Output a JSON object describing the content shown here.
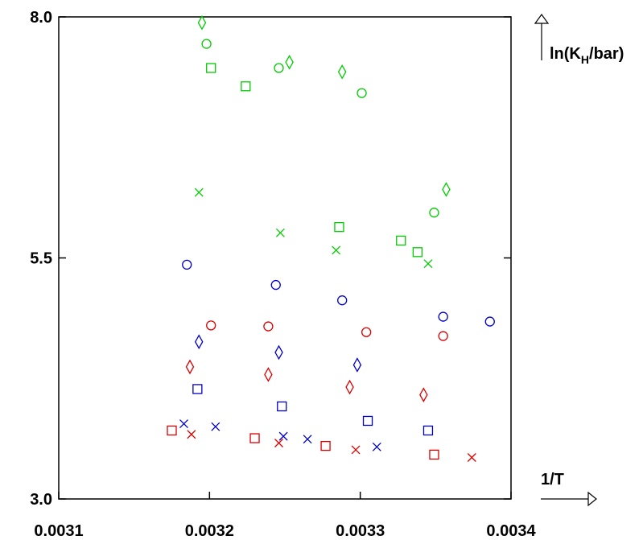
{
  "chart_data": {
    "type": "scatter",
    "title": "",
    "xlabel": "1/T",
    "ylabel": {
      "main": "ln(K",
      "sub": "H",
      "tail": "/bar)"
    },
    "xlim": [
      0.0031,
      0.0034
    ],
    "ylim": [
      3.0,
      8.0
    ],
    "x_ticks": [
      {
        "value": 0.0031,
        "label": "0.0031"
      },
      {
        "value": 0.0032,
        "label": "0.0032"
      },
      {
        "value": 0.0033,
        "label": "0.0033"
      },
      {
        "value": 0.0034,
        "label": "0.0034"
      }
    ],
    "y_ticks": [
      {
        "value": 3.0,
        "label": "3.0"
      },
      {
        "value": 5.5,
        "label": "5.5"
      },
      {
        "value": 8.0,
        "label": "8.0"
      }
    ],
    "grid": false,
    "colors": {
      "green": "#00cc00",
      "blue": "#0000cc",
      "red": "#dd0000"
    },
    "series": [
      {
        "color": "green",
        "marker": "diamond",
        "points": [
          [
            0.003195,
            7.94
          ],
          [
            0.003253,
            7.53
          ],
          [
            0.003288,
            7.43
          ],
          [
            0.003357,
            6.21
          ]
        ]
      },
      {
        "color": "green",
        "marker": "circle",
        "points": [
          [
            0.003198,
            7.72
          ],
          [
            0.003246,
            7.47
          ],
          [
            0.003301,
            7.21
          ],
          [
            0.003349,
            5.97
          ]
        ]
      },
      {
        "color": "green",
        "marker": "square",
        "points": [
          [
            0.003201,
            7.47
          ],
          [
            0.003224,
            7.28
          ],
          [
            0.003286,
            5.82
          ],
          [
            0.003327,
            5.68
          ],
          [
            0.003338,
            5.56
          ]
        ]
      },
      {
        "color": "green",
        "marker": "x",
        "points": [
          [
            0.003193,
            6.18
          ],
          [
            0.003247,
            5.76
          ],
          [
            0.003284,
            5.58
          ],
          [
            0.003345,
            5.44
          ]
        ]
      },
      {
        "color": "blue",
        "marker": "circle",
        "points": [
          [
            0.003185,
            5.43
          ],
          [
            0.003244,
            5.22
          ],
          [
            0.003288,
            5.06
          ],
          [
            0.003355,
            4.89
          ],
          [
            0.003386,
            4.84
          ]
        ]
      },
      {
        "color": "blue",
        "marker": "diamond",
        "points": [
          [
            0.003193,
            4.63
          ],
          [
            0.003246,
            4.52
          ],
          [
            0.003298,
            4.39
          ]
        ]
      },
      {
        "color": "blue",
        "marker": "square",
        "points": [
          [
            0.003192,
            4.14
          ],
          [
            0.003248,
            3.96
          ],
          [
            0.003305,
            3.81
          ],
          [
            0.003345,
            3.71
          ]
        ]
      },
      {
        "color": "blue",
        "marker": "x",
        "points": [
          [
            0.003183,
            3.78
          ],
          [
            0.003204,
            3.75
          ],
          [
            0.003249,
            3.65
          ],
          [
            0.003265,
            3.62
          ],
          [
            0.003311,
            3.54
          ]
        ]
      },
      {
        "color": "red",
        "marker": "circle",
        "points": [
          [
            0.003201,
            4.8
          ],
          [
            0.003239,
            4.79
          ],
          [
            0.003304,
            4.73
          ],
          [
            0.003355,
            4.69
          ]
        ]
      },
      {
        "color": "red",
        "marker": "diamond",
        "points": [
          [
            0.003187,
            4.37
          ],
          [
            0.003239,
            4.29
          ],
          [
            0.003293,
            4.16
          ],
          [
            0.003342,
            4.08
          ]
        ]
      },
      {
        "color": "red",
        "marker": "square",
        "points": [
          [
            0.003175,
            3.71
          ],
          [
            0.00323,
            3.63
          ],
          [
            0.003277,
            3.55
          ],
          [
            0.003349,
            3.46
          ]
        ]
      },
      {
        "color": "red",
        "marker": "x",
        "points": [
          [
            0.003188,
            3.67
          ],
          [
            0.003246,
            3.58
          ],
          [
            0.003297,
            3.51
          ],
          [
            0.003374,
            3.43
          ]
        ]
      }
    ]
  }
}
